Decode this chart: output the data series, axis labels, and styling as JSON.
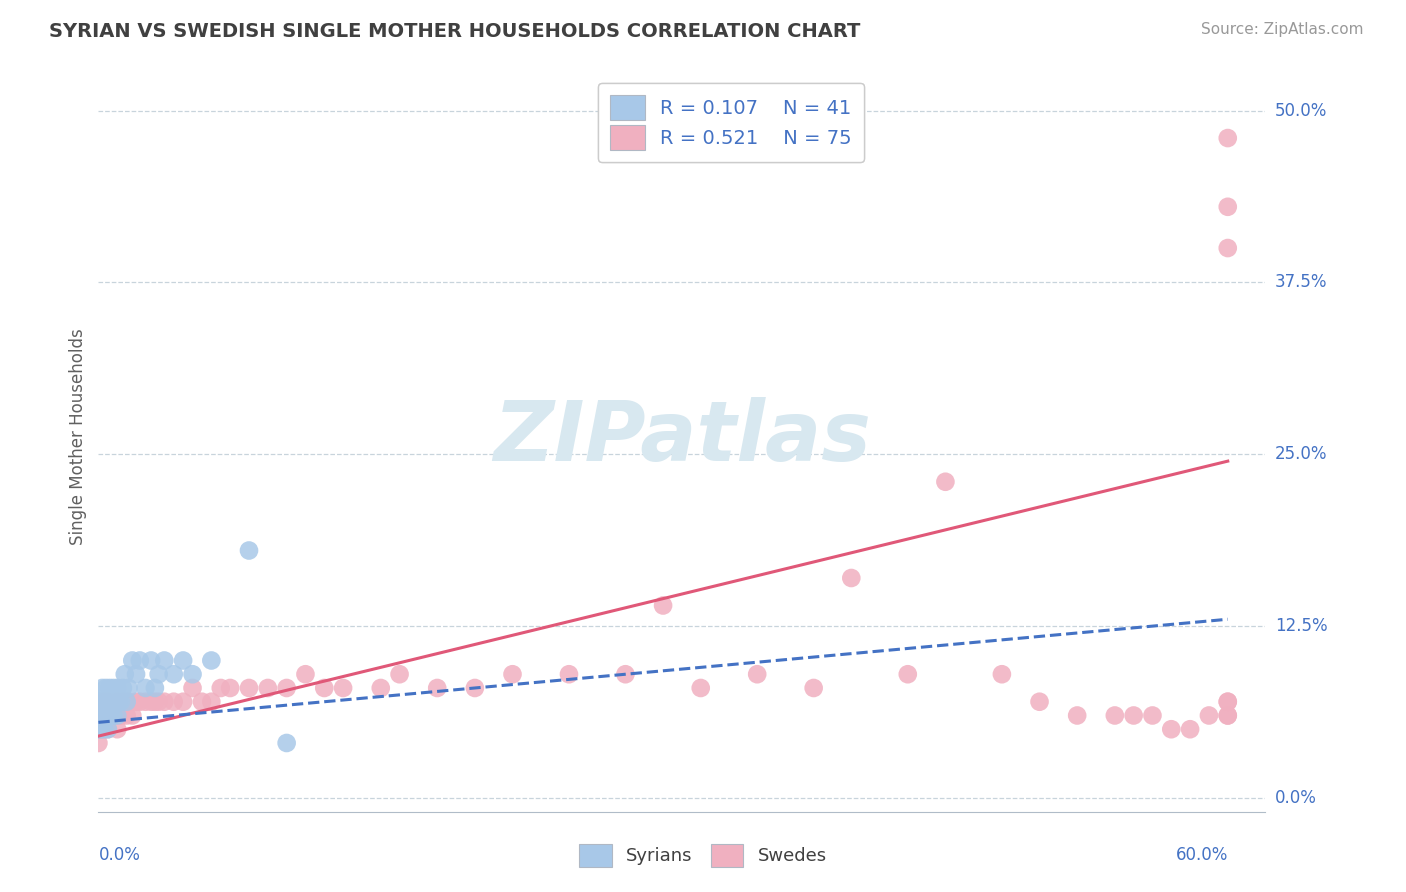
{
  "title": "SYRIAN VS SWEDISH SINGLE MOTHER HOUSEHOLDS CORRELATION CHART",
  "source": "Source: ZipAtlas.com",
  "ylabel": "Single Mother Households",
  "xlim": [
    0.0,
    0.62
  ],
  "ylim": [
    -0.01,
    0.535
  ],
  "xlabel_vals": [
    0.0,
    0.6
  ],
  "xlabel_labels": [
    "0.0%",
    "60.0%"
  ],
  "ylabel_vals": [
    0.0,
    0.125,
    0.25,
    0.375,
    0.5
  ],
  "ylabel_labels": [
    "0.0%",
    "12.5%",
    "25.0%",
    "37.5%",
    "50.0%"
  ],
  "syrian_dot_color": "#a8c8e8",
  "swedish_dot_color": "#f0b0c0",
  "syrian_line_color": "#4472c4",
  "swedish_line_color": "#e05878",
  "grid_color": "#c8d4dc",
  "title_color": "#404040",
  "source_color": "#999999",
  "legend_r_color": "#4472c4",
  "legend_n_color": "#404040",
  "bg_color": "#ffffff",
  "watermark_color": "#d8e8f0",
  "legend_r1": "R = 0.107",
  "legend_n1": "N = 41",
  "legend_r2": "R = 0.521",
  "legend_n2": "N = 75",
  "syr_x": [
    0.0,
    0.0,
    0.0,
    0.001,
    0.001,
    0.002,
    0.002,
    0.003,
    0.003,
    0.004,
    0.004,
    0.005,
    0.005,
    0.006,
    0.006,
    0.007,
    0.008,
    0.008,
    0.009,
    0.01,
    0.01,
    0.011,
    0.012,
    0.013,
    0.014,
    0.015,
    0.016,
    0.018,
    0.02,
    0.022,
    0.025,
    0.028,
    0.03,
    0.032,
    0.035,
    0.04,
    0.045,
    0.05,
    0.06,
    0.08,
    0.1
  ],
  "syr_y": [
    0.05,
    0.06,
    0.07,
    0.05,
    0.07,
    0.06,
    0.08,
    0.05,
    0.07,
    0.06,
    0.08,
    0.05,
    0.07,
    0.06,
    0.08,
    0.07,
    0.06,
    0.08,
    0.07,
    0.06,
    0.08,
    0.07,
    0.07,
    0.08,
    0.09,
    0.07,
    0.08,
    0.1,
    0.09,
    0.1,
    0.08,
    0.1,
    0.08,
    0.09,
    0.1,
    0.09,
    0.1,
    0.09,
    0.1,
    0.18,
    0.04
  ],
  "sw_x": [
    0.0,
    0.0,
    0.0,
    0.001,
    0.001,
    0.002,
    0.002,
    0.003,
    0.003,
    0.004,
    0.004,
    0.005,
    0.005,
    0.006,
    0.007,
    0.008,
    0.009,
    0.01,
    0.01,
    0.011,
    0.012,
    0.013,
    0.015,
    0.016,
    0.018,
    0.02,
    0.022,
    0.025,
    0.028,
    0.03,
    0.032,
    0.035,
    0.04,
    0.045,
    0.05,
    0.055,
    0.06,
    0.065,
    0.07,
    0.08,
    0.09,
    0.1,
    0.11,
    0.12,
    0.13,
    0.15,
    0.16,
    0.18,
    0.2,
    0.22,
    0.25,
    0.28,
    0.3,
    0.32,
    0.35,
    0.38,
    0.4,
    0.43,
    0.45,
    0.48,
    0.5,
    0.52,
    0.54,
    0.55,
    0.56,
    0.57,
    0.58,
    0.59,
    0.6,
    0.6,
    0.6,
    0.6,
    0.6,
    0.6,
    0.6
  ],
  "sw_y": [
    0.04,
    0.05,
    0.06,
    0.05,
    0.06,
    0.05,
    0.06,
    0.05,
    0.07,
    0.06,
    0.06,
    0.05,
    0.07,
    0.06,
    0.06,
    0.06,
    0.06,
    0.05,
    0.07,
    0.06,
    0.06,
    0.07,
    0.06,
    0.07,
    0.06,
    0.07,
    0.07,
    0.07,
    0.07,
    0.07,
    0.07,
    0.07,
    0.07,
    0.07,
    0.08,
    0.07,
    0.07,
    0.08,
    0.08,
    0.08,
    0.08,
    0.08,
    0.09,
    0.08,
    0.08,
    0.08,
    0.09,
    0.08,
    0.08,
    0.09,
    0.09,
    0.09,
    0.14,
    0.08,
    0.09,
    0.08,
    0.16,
    0.09,
    0.23,
    0.09,
    0.07,
    0.06,
    0.06,
    0.06,
    0.06,
    0.05,
    0.05,
    0.06,
    0.07,
    0.06,
    0.06,
    0.07,
    0.48,
    0.43,
    0.4
  ],
  "sw_line_x0": 0.0,
  "sw_line_x1": 0.6,
  "sw_line_y0": 0.045,
  "sw_line_y1": 0.245,
  "syr_line_x0": 0.0,
  "syr_line_x1": 0.6,
  "syr_line_y0": 0.055,
  "syr_line_y1": 0.13
}
